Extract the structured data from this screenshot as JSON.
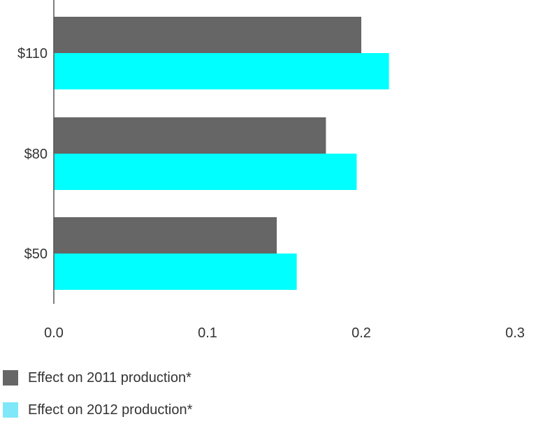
{
  "chart_data": {
    "type": "bar",
    "orientation": "horizontal",
    "categories": [
      "$110",
      "$80",
      "$50"
    ],
    "series": [
      {
        "name": "Effect on 2011 production*",
        "color": "#666666",
        "values": [
          0.2,
          0.177,
          0.145
        ]
      },
      {
        "name": "Effect on 2012 production*",
        "color": "#00ffff",
        "values": [
          0.218,
          0.197,
          0.158
        ]
      }
    ],
    "x_ticks": [
      "0.0",
      "0.1",
      "0.2",
      "0.3"
    ],
    "xlim": [
      0,
      0.3
    ],
    "grid": false,
    "legend_position": "bottom-left"
  }
}
